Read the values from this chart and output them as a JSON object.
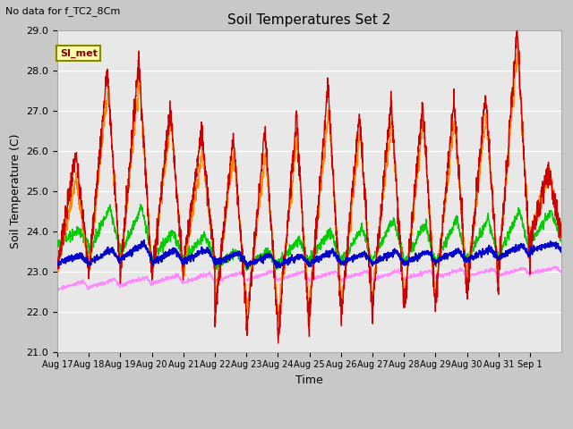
{
  "title": "Soil Temperatures Set 2",
  "subtitle": "No data for f_TC2_8Cm",
  "ylabel": "Soil Temperature (C)",
  "xlabel": "Time",
  "ylim": [
    21.0,
    29.0
  ],
  "yticks": [
    21.0,
    22.0,
    23.0,
    24.0,
    25.0,
    26.0,
    27.0,
    28.0,
    29.0
  ],
  "xtick_labels": [
    "Aug 17",
    "Aug 18",
    "Aug 19",
    "Aug 20",
    "Aug 21",
    "Aug 22",
    "Aug 23",
    "Aug 24",
    "Aug 25",
    "Aug 26",
    "Aug 27",
    "Aug 28",
    "Aug 29",
    "Aug 30",
    "Aug 31",
    "Sep 1"
  ],
  "series": {
    "TC2_2Cm": {
      "color": "#cc0000",
      "lw": 1.0
    },
    "TC2_4Cm": {
      "color": "#ff8800",
      "lw": 1.0
    },
    "TC2_16Cm": {
      "color": "#00cc00",
      "lw": 1.0
    },
    "TC2_32Cm": {
      "color": "#0000cc",
      "lw": 1.3
    },
    "TC2_50Cm": {
      "color": "#ff88ff",
      "lw": 0.8
    }
  },
  "fig_bg": "#c8c8c8",
  "plot_bg": "#e8e8e8",
  "grid_color": "#ffffff",
  "annotation_text": "SI_met",
  "annotation_color": "#880000",
  "annotation_bg": "#ffffaa",
  "annotation_border": "#888800"
}
